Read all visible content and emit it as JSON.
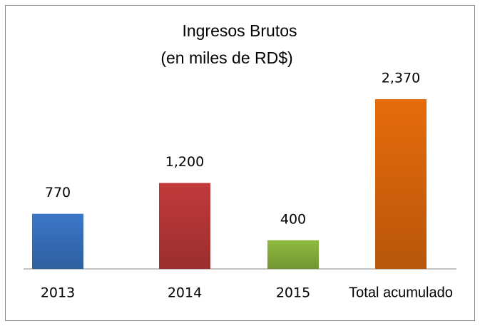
{
  "chart_data": {
    "type": "bar",
    "title": "Ingresos Brutos",
    "subtitle": "(en miles de RD$)",
    "categories": [
      "2013",
      "2014",
      "2015",
      "Total acumulado"
    ],
    "values": [
      770,
      1200,
      400,
      2370
    ],
    "value_labels": [
      "770",
      "1,200",
      "400",
      "2,370"
    ],
    "colors": [
      "#3b77c8",
      "#c23a3a",
      "#8fba3e",
      "#e66c0c"
    ]
  }
}
